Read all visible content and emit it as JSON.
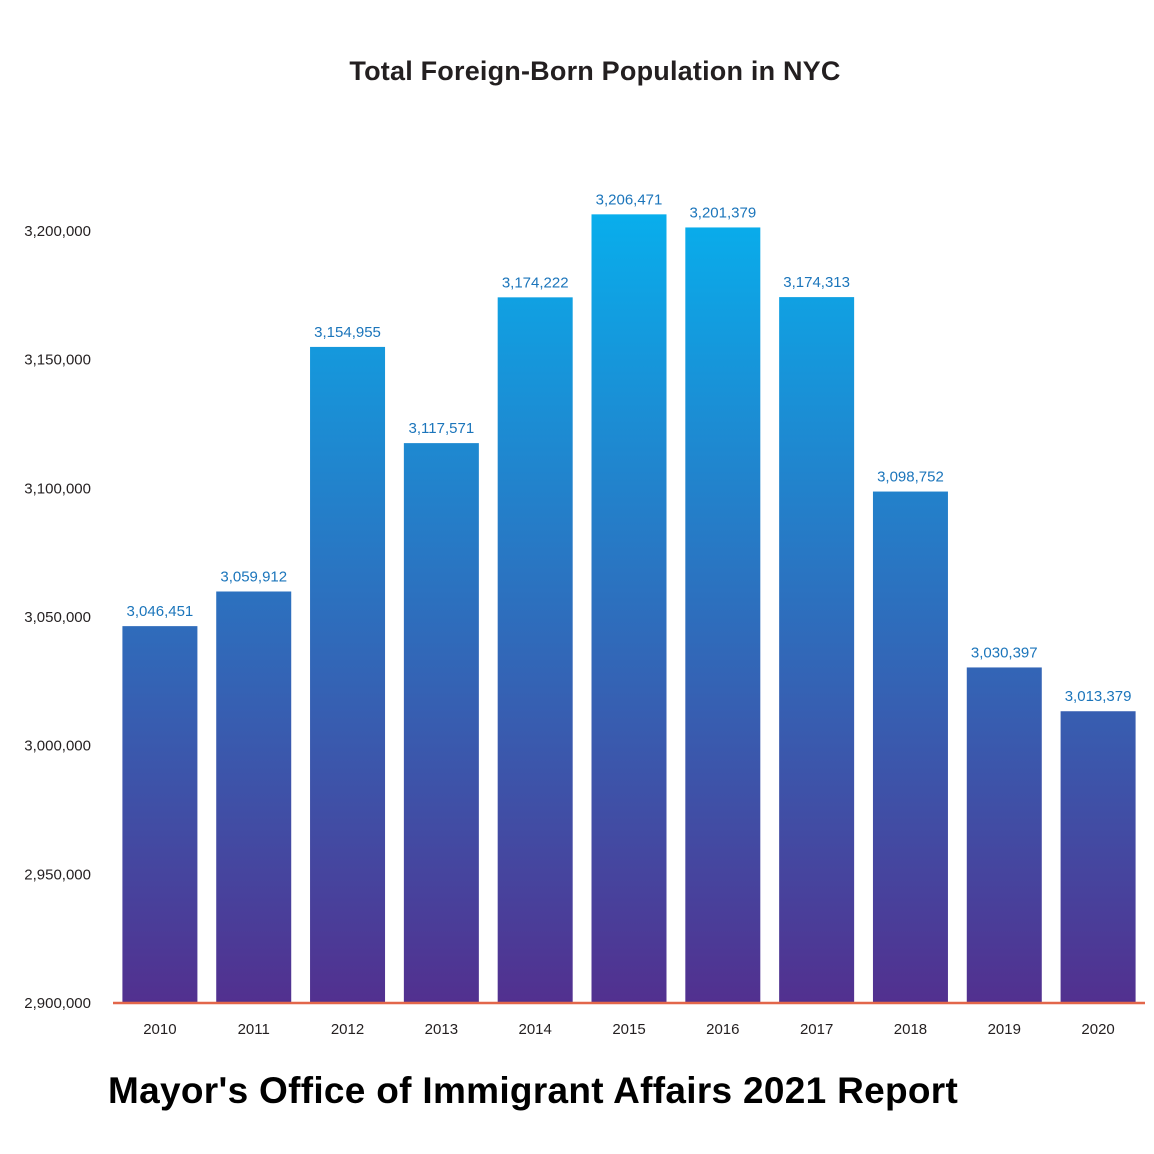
{
  "chart_data": {
    "type": "bar",
    "title": "Total Foreign-Born Population in NYC",
    "categories": [
      "2010",
      "2011",
      "2012",
      "2013",
      "2014",
      "2015",
      "2016",
      "2017",
      "2018",
      "2019",
      "2020"
    ],
    "values": [
      3046451,
      3059912,
      3154955,
      3117571,
      3174222,
      3206471,
      3201379,
      3174313,
      3098752,
      3030397,
      3013379
    ],
    "data_labels": [
      "3,046,451",
      "3,059,912",
      "3,154,955",
      "3,117,571",
      "3,174,222",
      "3,206,471",
      "3,201,379",
      "3,174,313",
      "3,098,752",
      "3,030,397",
      "3,013,379"
    ],
    "ylim": [
      2900000,
      3200000
    ],
    "yticks": [
      2900000,
      2950000,
      3000000,
      3050000,
      3100000,
      3150000,
      3200000
    ],
    "ytick_labels": [
      "2,900,000",
      "2,950,000",
      "3,000,000",
      "3,050,000",
      "3,100,000",
      "3,150,000",
      "3,200,000"
    ],
    "xlabel": "",
    "ylabel": "",
    "grid": false,
    "legend": "none",
    "colors": {
      "bar_top": "#06b2ef",
      "bar_bottom": "#52308f",
      "data_label": "#1b75bb",
      "baseline": "#e2664a",
      "tick_label": "#231f20"
    }
  },
  "footer": {
    "caption": "Mayor's Office of Immigrant Affairs 2021 Report"
  }
}
